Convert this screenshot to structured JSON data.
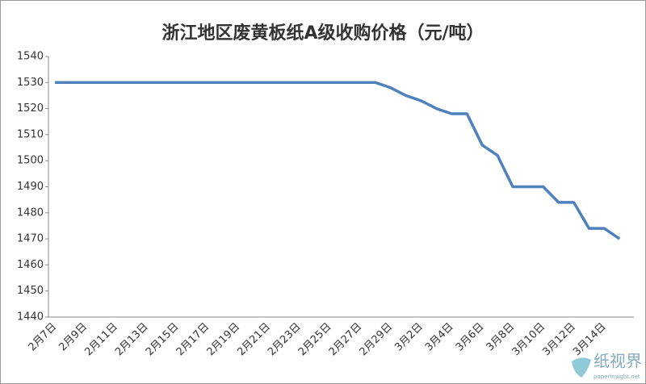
{
  "chart_data": {
    "type": "line",
    "title": "浙江地区废黄板纸A级收购价格（元/吨）",
    "categories": [
      "2月7日",
      null,
      "2月9日",
      null,
      "2月11日",
      null,
      "2月13日",
      null,
      "2月15日",
      null,
      "2月17日",
      null,
      "2月19日",
      null,
      "2月21日",
      null,
      "2月23日",
      null,
      "2月25日",
      null,
      "2月27日",
      null,
      "2月29日",
      null,
      "3月2日",
      null,
      "3月4日",
      null,
      "3月6日",
      null,
      "3月8日",
      null,
      "3月10日",
      null,
      "3月12日",
      null,
      "3月14日",
      null
    ],
    "series": [
      {
        "color": "#4f81bd",
        "values": [
          1530,
          1530,
          1530,
          1530,
          1530,
          1530,
          1530,
          1530,
          1530,
          1530,
          1530,
          1530,
          1530,
          1530,
          1530,
          1530,
          1530,
          1530,
          1530,
          1530,
          1530,
          1530,
          1528,
          1525,
          1523,
          1520,
          1518,
          1518,
          1506,
          1502,
          1490,
          1490,
          1490,
          1484,
          1484,
          1474,
          1474,
          1470
        ]
      }
    ],
    "ylim": [
      1440,
      1540
    ],
    "yticks": [
      1440,
      1450,
      1460,
      1470,
      1480,
      1490,
      1500,
      1510,
      1520,
      1530,
      1540
    ],
    "grid": false
  },
  "watermark": {
    "name": "纸视界",
    "url": "paperinsight.net"
  }
}
